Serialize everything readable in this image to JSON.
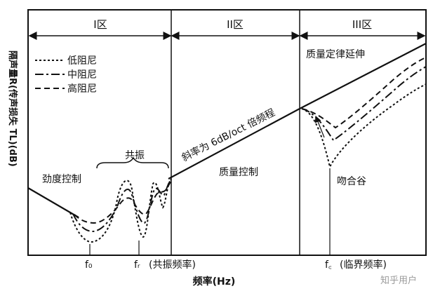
{
  "regions": {
    "r1": "I区",
    "r2": "II区",
    "r3": "III区"
  },
  "legend": [
    {
      "label": "低阻尼",
      "style": "dotted"
    },
    {
      "label": "中阻尼",
      "style": "dash-dot"
    },
    {
      "label": "高阻尼",
      "style": "dashed"
    }
  ],
  "y_axis": {
    "label": "隔声量R(传声损失 TL)(dB)"
  },
  "x_axis": {
    "label": "频率(Hz)",
    "ticks": {
      "f0": "f₀",
      "fr": "fᵣ",
      "fr_note": "(共振频率)",
      "fc": "f꜀",
      "fc_note": "(临界频率)"
    }
  },
  "annotations": {
    "stiffness": "劲度控制",
    "resonance": "共振",
    "slope": "斜率为 6dB/oct 倍频程",
    "mass": "质量控制",
    "mass_ext": "质量定律延伸",
    "coincidence": "吻合谷"
  },
  "watermark": "知乎用户"
}
